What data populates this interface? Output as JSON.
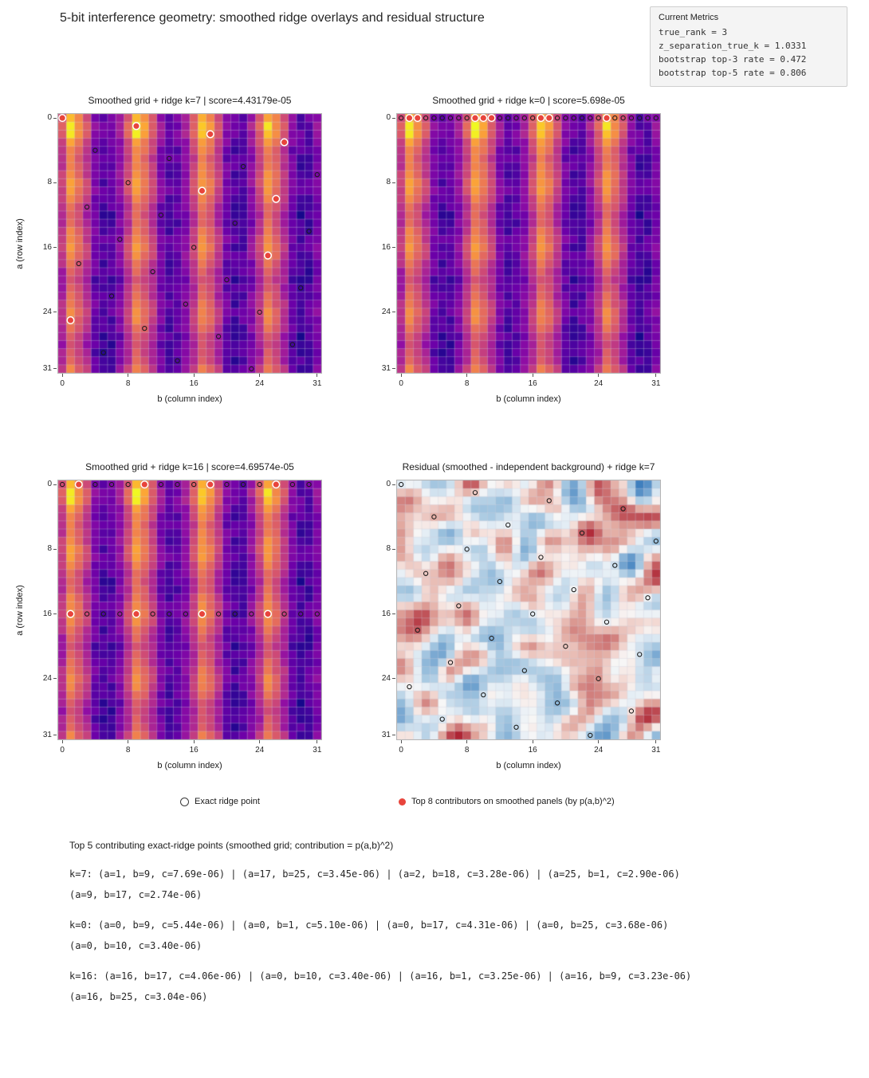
{
  "figure": {
    "title": "5-bit interference geometry: smoothed ridge overlays and residual structure",
    "background_color": "#ffffff"
  },
  "metrics_box": {
    "title": "Current Metrics",
    "lines": [
      "true_rank = 3",
      "z_separation_true_k = 1.0331",
      "bootstrap top-3 rate = 0.472",
      "bootstrap top-5 rate = 0.806"
    ]
  },
  "legend": {
    "items": [
      {
        "marker": "open-circle",
        "edge_color": "#3a3a3a",
        "label": "Exact ridge point"
      },
      {
        "marker": "filled-circle",
        "fill_color": "#e8453c",
        "label": "Top 8 contributors on smoothed panels (by p(a,b)^2)"
      }
    ]
  },
  "contributors_block": {
    "header": "Top 5 contributing exact-ridge points (smoothed grid; contribution = p(a,b)^2)",
    "groups": [
      {
        "line1": "k=7: (a=1, b=9, c=7.69e-06) | (a=17, b=25, c=3.45e-06) | (a=2, b=18, c=3.28e-06) | (a=25, b=1, c=2.90e-06)",
        "line2": "(a=9, b=17, c=2.74e-06)"
      },
      {
        "line1": "k=0: (a=0, b=9, c=5.44e-06) | (a=0, b=1, c=5.10e-06) | (a=0, b=17, c=4.31e-06) | (a=0, b=25, c=3.68e-06)",
        "line2": "(a=0, b=10, c=3.40e-06)"
      },
      {
        "line1": "k=16: (a=16, b=17, c=4.06e-06) | (a=0, b=10, c=3.40e-06) | (a=16, b=1, c=3.25e-06) | (a=16, b=9, c=3.23e-06)",
        "line2": "(a=16, b=25, c=3.04e-06)"
      }
    ]
  },
  "chart_data": {
    "type": "heatmap",
    "grid_size": 32,
    "axes": {
      "xlabel": "b (column index)",
      "ylabel": "a (row index)",
      "x_ticks": [
        0,
        8,
        16,
        24,
        31
      ],
      "y_ticks": [
        0,
        8,
        16,
        24,
        31
      ],
      "x_range": [
        0,
        31
      ],
      "y_range": [
        0,
        31
      ],
      "origin": "upper-left"
    },
    "panels": [
      {
        "id": "k7",
        "title": "Smoothed grid + ridge k=7 | score=4.43179e-05",
        "grid": "smoothed",
        "ridge": "k7",
        "top8": "k7"
      },
      {
        "id": "k0",
        "title": "Smoothed grid + ridge k=0 | score=5.698e-05",
        "grid": "smoothed",
        "ridge": "k0",
        "top8": "k0"
      },
      {
        "id": "k16",
        "title": "Smoothed grid + ridge k=16 | score=4.69574e-05",
        "grid": "smoothed",
        "ridge": "k16",
        "top8": "k16"
      },
      {
        "id": "residual",
        "title": "Residual (smoothed - independent background) + ridge k=7",
        "grid": "residual",
        "ridge": "k7",
        "top8": null
      }
    ],
    "smoothed_grid": {
      "description": "32x32 smoothed interference magnitude grid, identical on the three smoothed panels; bright vertical ridges at b = 1, 9, 17, 25 with period 8, strongest near a = 0-2 and fading/rebrightening with period ~8 in a",
      "model": "value(a,b) = sqrt(clamp01(row_profile[a] * col_profile[b] + noise))",
      "row_profile": [
        0.88,
        1.0,
        0.95,
        0.78,
        0.68,
        0.62,
        0.66,
        0.72,
        0.8,
        0.78,
        0.66,
        0.55,
        0.5,
        0.55,
        0.62,
        0.7,
        0.74,
        0.7,
        0.6,
        0.5,
        0.45,
        0.48,
        0.54,
        0.62,
        0.7,
        0.66,
        0.56,
        0.47,
        0.42,
        0.45,
        0.52,
        0.66
      ],
      "col_profile": [
        0.45,
        1.0,
        0.72,
        0.45,
        0.16,
        0.09,
        0.1,
        0.22,
        0.5,
        1.0,
        0.78,
        0.48,
        0.18,
        0.1,
        0.11,
        0.24,
        0.5,
        0.95,
        0.74,
        0.44,
        0.16,
        0.09,
        0.1,
        0.22,
        0.48,
        0.95,
        0.7,
        0.42,
        0.15,
        0.08,
        0.09,
        0.2
      ],
      "noise_amplitude": 0.08,
      "noise_seed": 13,
      "colormap": "plasma-like",
      "colormap_stops": [
        [
          0.0,
          "#0d0887"
        ],
        [
          0.1,
          "#2a0593"
        ],
        [
          0.2,
          "#41049d"
        ],
        [
          0.3,
          "#6a00a8"
        ],
        [
          0.4,
          "#8f0da4"
        ],
        [
          0.5,
          "#b12a90"
        ],
        [
          0.6,
          "#cc4778"
        ],
        [
          0.7,
          "#e16462"
        ],
        [
          0.8,
          "#f2844b"
        ],
        [
          0.9,
          "#fca636"
        ],
        [
          0.97,
          "#fcce25"
        ],
        [
          1.0,
          "#f0f921"
        ]
      ]
    },
    "residual_grid": {
      "description": "32x32 residual (smoothed minus independent background): low-amplitude blobby random field, mostly near-white cells with scattered red (positive) and blue (negative) patches",
      "seed": 42,
      "smoothing_passes": 2,
      "value_range": [
        -1,
        1
      ],
      "colormap": "RdBu-like diverging",
      "colormap_stops": [
        [
          -1.0,
          "#3f7fbe"
        ],
        [
          -0.5,
          "#9dc2de"
        ],
        [
          -0.15,
          "#e3edf5"
        ],
        [
          0.0,
          "#f7f7f7"
        ],
        [
          0.15,
          "#f6e3de"
        ],
        [
          0.5,
          "#e0a49b"
        ],
        [
          1.0,
          "#ad2332"
        ]
      ]
    },
    "ridge_points": {
      "k7": [
        [
          0,
          0
        ],
        [
          1,
          9
        ],
        [
          2,
          18
        ],
        [
          3,
          27
        ],
        [
          4,
          4
        ],
        [
          5,
          13
        ],
        [
          6,
          22
        ],
        [
          7,
          31
        ],
        [
          8,
          8
        ],
        [
          9,
          17
        ],
        [
          10,
          26
        ],
        [
          11,
          3
        ],
        [
          12,
          12
        ],
        [
          13,
          21
        ],
        [
          14,
          30
        ],
        [
          15,
          7
        ],
        [
          16,
          16
        ],
        [
          17,
          25
        ],
        [
          18,
          2
        ],
        [
          19,
          11
        ],
        [
          20,
          20
        ],
        [
          21,
          29
        ],
        [
          22,
          6
        ],
        [
          23,
          15
        ],
        [
          24,
          24
        ],
        [
          25,
          1
        ],
        [
          26,
          10
        ],
        [
          27,
          19
        ],
        [
          28,
          28
        ],
        [
          29,
          5
        ],
        [
          30,
          14
        ],
        [
          31,
          23
        ]
      ],
      "k0": [
        [
          0,
          0
        ],
        [
          0,
          1
        ],
        [
          0,
          2
        ],
        [
          0,
          3
        ],
        [
          0,
          4
        ],
        [
          0,
          5
        ],
        [
          0,
          6
        ],
        [
          0,
          7
        ],
        [
          0,
          8
        ],
        [
          0,
          9
        ],
        [
          0,
          10
        ],
        [
          0,
          11
        ],
        [
          0,
          12
        ],
        [
          0,
          13
        ],
        [
          0,
          14
        ],
        [
          0,
          15
        ],
        [
          0,
          16
        ],
        [
          0,
          17
        ],
        [
          0,
          18
        ],
        [
          0,
          19
        ],
        [
          0,
          20
        ],
        [
          0,
          21
        ],
        [
          0,
          22
        ],
        [
          0,
          23
        ],
        [
          0,
          24
        ],
        [
          0,
          25
        ],
        [
          0,
          26
        ],
        [
          0,
          27
        ],
        [
          0,
          28
        ],
        [
          0,
          29
        ],
        [
          0,
          30
        ],
        [
          0,
          31
        ]
      ],
      "k16": [
        [
          0,
          0
        ],
        [
          0,
          2
        ],
        [
          0,
          4
        ],
        [
          0,
          6
        ],
        [
          0,
          8
        ],
        [
          0,
          10
        ],
        [
          0,
          12
        ],
        [
          0,
          14
        ],
        [
          0,
          16
        ],
        [
          0,
          18
        ],
        [
          0,
          20
        ],
        [
          0,
          22
        ],
        [
          0,
          24
        ],
        [
          0,
          26
        ],
        [
          0,
          28
        ],
        [
          0,
          30
        ],
        [
          16,
          1
        ],
        [
          16,
          3
        ],
        [
          16,
          5
        ],
        [
          16,
          7
        ],
        [
          16,
          9
        ],
        [
          16,
          11
        ],
        [
          16,
          13
        ],
        [
          16,
          15
        ],
        [
          16,
          17
        ],
        [
          16,
          19
        ],
        [
          16,
          21
        ],
        [
          16,
          23
        ],
        [
          16,
          25
        ],
        [
          16,
          27
        ],
        [
          16,
          29
        ],
        [
          16,
          31
        ]
      ]
    },
    "top_contributors": {
      "k7": [
        [
          0,
          0
        ],
        [
          1,
          9
        ],
        [
          2,
          18
        ],
        [
          3,
          27
        ],
        [
          9,
          17
        ],
        [
          10,
          26
        ],
        [
          17,
          25
        ],
        [
          25,
          1
        ]
      ],
      "k0": [
        [
          0,
          1
        ],
        [
          0,
          2
        ],
        [
          0,
          9
        ],
        [
          0,
          10
        ],
        [
          0,
          11
        ],
        [
          0,
          17
        ],
        [
          0,
          18
        ],
        [
          0,
          25
        ]
      ],
      "k16": [
        [
          0,
          2
        ],
        [
          0,
          10
        ],
        [
          0,
          18
        ],
        [
          0,
          26
        ],
        [
          16,
          1
        ],
        [
          16,
          9
        ],
        [
          16,
          17
        ],
        [
          16,
          25
        ]
      ]
    },
    "marker_styles": {
      "ridge_point": {
        "shape": "open-circle",
        "radius": 2.6,
        "edge_color": "#1c1c1c",
        "edge_width": 1.1,
        "fill": "none"
      },
      "top_contributor": {
        "shape": "filled-circle",
        "radius": 4.3,
        "fill_color": "#e8453c",
        "edge_color": "#ffffff",
        "edge_width": 1.5
      }
    },
    "gridline_color": "rgba(205,205,220,0.42)",
    "legend_position": "bottom-center"
  }
}
